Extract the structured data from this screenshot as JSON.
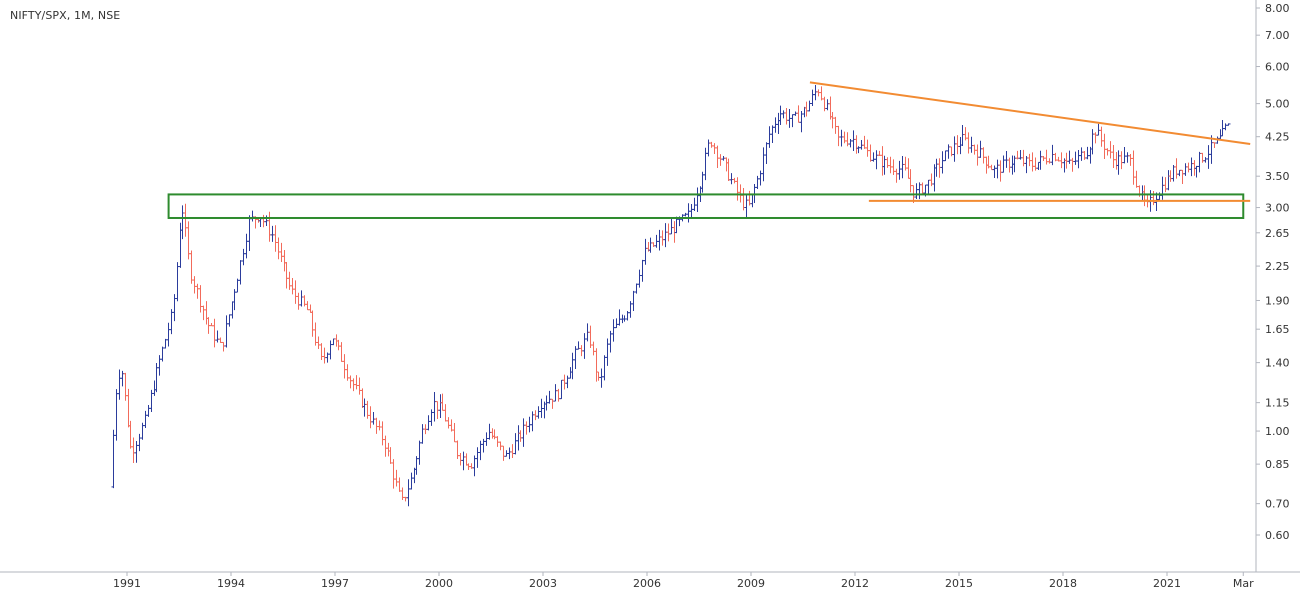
{
  "header": {
    "symbol_line": "NIFTY/SPX, 1M, NSE"
  },
  "colors": {
    "up_bar": "#2b3c9c",
    "down_bar": "#f26b5b",
    "trendline": "#f28b32",
    "box": "#2e8b2e",
    "axis_line": "#b2b5be",
    "text": "#333333"
  },
  "chart_data": {
    "type": "ohlc-bar",
    "title": "NIFTY/SPX, 1M, NSE",
    "xlabel": "",
    "ylabel": "",
    "scale": "log",
    "x_range": [
      1990.4,
      2023.4
    ],
    "y_range": [
      0.5,
      8.0
    ],
    "grid": false,
    "x_ticks": [
      "1991",
      "1994",
      "1997",
      "2000",
      "2003",
      "2006",
      "2009",
      "2012",
      "2015",
      "2018",
      "2021",
      "Mar"
    ],
    "x_tick_values": [
      1991,
      1994,
      1997,
      2000,
      2003,
      2006,
      2009,
      2012,
      2015,
      2018,
      2021,
      2023.2
    ],
    "y_ticks": [
      "8.00",
      "7.00",
      "6.00",
      "5.00",
      "4.25",
      "3.50",
      "3.00",
      "2.65",
      "2.25",
      "1.90",
      "1.65",
      "1.40",
      "1.15",
      "1.00",
      "0.85",
      "0.70",
      "0.60"
    ],
    "y_tick_values": [
      8.0,
      7.0,
      6.0,
      5.0,
      4.25,
      3.5,
      3.0,
      2.65,
      2.25,
      1.9,
      1.65,
      1.4,
      1.15,
      1.0,
      0.85,
      0.7,
      0.6
    ],
    "price_anchors": [
      [
        1990.6,
        0.76
      ],
      [
        1990.75,
        1.2
      ],
      [
        1990.9,
        1.4
      ],
      [
        1991.2,
        0.9
      ],
      [
        1991.6,
        1.05
      ],
      [
        1992.0,
        1.4
      ],
      [
        1992.4,
        1.8
      ],
      [
        1992.55,
        2.4
      ],
      [
        1992.65,
        3.1
      ],
      [
        1992.9,
        2.2
      ],
      [
        1993.4,
        1.7
      ],
      [
        1993.8,
        1.5
      ],
      [
        1994.3,
        2.2
      ],
      [
        1994.6,
        2.8
      ],
      [
        1994.9,
        2.9
      ],
      [
        1995.3,
        2.6
      ],
      [
        1995.8,
        2.0
      ],
      [
        1996.3,
        1.8
      ],
      [
        1996.7,
        1.4
      ],
      [
        1997.0,
        1.6
      ],
      [
        1997.5,
        1.3
      ],
      [
        1998.0,
        1.1
      ],
      [
        1998.5,
        0.95
      ],
      [
        1999.0,
        0.7
      ],
      [
        1999.3,
        0.8
      ],
      [
        1999.6,
        1.0
      ],
      [
        1999.9,
        1.15
      ],
      [
        2000.2,
        1.1
      ],
      [
        2000.6,
        0.9
      ],
      [
        2001.0,
        0.85
      ],
      [
        2001.5,
        1.0
      ],
      [
        2002.0,
        0.88
      ],
      [
        2002.5,
        1.0
      ],
      [
        2003.0,
        1.15
      ],
      [
        2003.5,
        1.2
      ],
      [
        2004.0,
        1.45
      ],
      [
        2004.4,
        1.6
      ],
      [
        2004.7,
        1.25
      ],
      [
        2005.0,
        1.6
      ],
      [
        2005.5,
        1.8
      ],
      [
        2006.0,
        2.4
      ],
      [
        2006.3,
        2.5
      ],
      [
        2006.8,
        2.7
      ],
      [
        2007.3,
        2.9
      ],
      [
        2007.6,
        3.4
      ],
      [
        2007.9,
        4.2
      ],
      [
        2008.3,
        3.7
      ],
      [
        2008.8,
        3.1
      ],
      [
        2009.0,
        3.0
      ],
      [
        2009.3,
        3.5
      ],
      [
        2009.6,
        4.3
      ],
      [
        2009.9,
        4.8
      ],
      [
        2010.3,
        4.6
      ],
      [
        2010.7,
        4.9
      ],
      [
        2011.0,
        5.4
      ],
      [
        2011.3,
        4.8
      ],
      [
        2011.6,
        4.2
      ],
      [
        2012.0,
        4.2
      ],
      [
        2012.5,
        3.9
      ],
      [
        2013.0,
        3.7
      ],
      [
        2013.5,
        3.6
      ],
      [
        2013.8,
        3.2
      ],
      [
        2014.2,
        3.4
      ],
      [
        2014.7,
        3.9
      ],
      [
        2015.2,
        4.2
      ],
      [
        2015.7,
        3.9
      ],
      [
        2016.1,
        3.6
      ],
      [
        2016.7,
        3.8
      ],
      [
        2017.2,
        3.7
      ],
      [
        2017.8,
        3.9
      ],
      [
        2018.3,
        3.7
      ],
      [
        2018.8,
        4.0
      ],
      [
        2019.0,
        4.4
      ],
      [
        2019.5,
        3.8
      ],
      [
        2020.0,
        3.8
      ],
      [
        2020.3,
        3.2
      ],
      [
        2020.5,
        3.0
      ],
      [
        2020.9,
        3.3
      ],
      [
        2021.3,
        3.6
      ],
      [
        2021.8,
        3.7
      ],
      [
        2022.2,
        3.9
      ],
      [
        2022.6,
        4.2
      ],
      [
        2022.8,
        4.45
      ]
    ],
    "annotations": {
      "resistance_trendline": {
        "from": [
          2010.7,
          5.55
        ],
        "to": [
          2023.4,
          4.1
        ]
      },
      "support_line": {
        "from": [
          2012.4,
          3.1
        ],
        "to": [
          2023.4,
          3.1
        ]
      },
      "support_zone_box": {
        "x_from": 1992.2,
        "x_to": 2023.2,
        "y_low": 2.85,
        "y_high": 3.2
      }
    }
  }
}
